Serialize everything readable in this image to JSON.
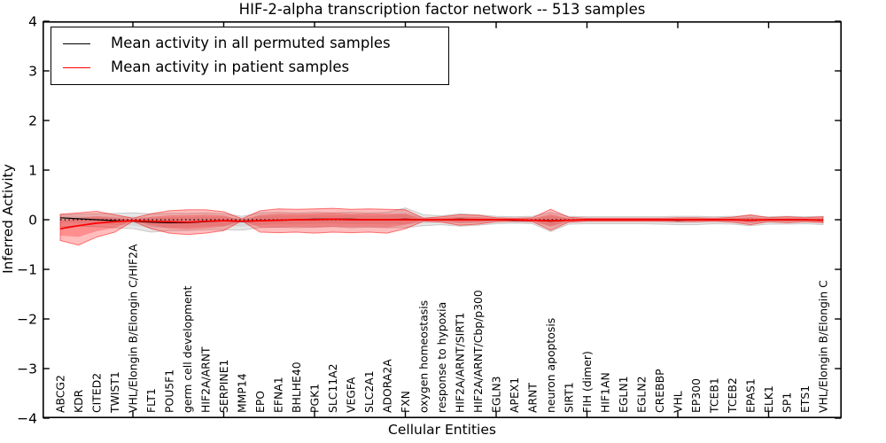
{
  "chart_data": {
    "type": "line",
    "title": "HIF-2-alpha transcription factor network -- 513 samples",
    "xlabel": "Cellular Entities",
    "ylabel": "Inferred Activity",
    "ylim": [
      -4,
      4
    ],
    "grid": false,
    "legend_position": "upper left",
    "ytick_values": [
      4,
      3,
      2,
      1,
      0,
      -1,
      -2,
      -3,
      -4
    ],
    "ytick_labels": [
      "4",
      "3",
      "2",
      "1",
      "0",
      "−1",
      "−2",
      "−3",
      "−4"
    ],
    "xtick_data_positions": [
      5,
      10,
      15,
      20,
      25,
      30,
      35,
      40
    ],
    "categories": [
      "ABCG2",
      "KDR",
      "CITED2",
      "TWIST1",
      "VHL/Elongin B/Elongin C/HIF2A",
      "FLT1",
      "POU5F1",
      "germ cell development",
      "HIF2A/ARNT",
      "SERPINE1",
      "MMP14",
      "EPO",
      "EFNA1",
      "BHLHE40",
      "PGK1",
      "SLC11A2",
      "VEGFA",
      "SLC2A1",
      "ADORA2A",
      "FXN",
      "oxygen homeostasis",
      "response to hypoxia",
      "HIF2A/ARNT/SIRT1",
      "HIF2A/ARNT/Cbp/p300",
      "EGLN3",
      "APEX1",
      "ARNT",
      "neuron apoptosis",
      "SIRT1",
      "FIH (dimer)",
      "HIF1AN",
      "EGLN1",
      "EGLN2",
      "CREBBP",
      "VHL",
      "EP300",
      "TCEB1",
      "TCEB2",
      "EPAS1",
      "ELK1",
      "SP1",
      "ETS1",
      "VHL/Elongin B/Elongin C"
    ],
    "reference_line": {
      "y": 0,
      "style": "dotted",
      "color": "#000000"
    },
    "series": [
      {
        "name": "Mean activity in all permuted samples",
        "color": "#000000",
        "style": "solid",
        "values": [
          0.04,
          0.02,
          0.0,
          -0.02,
          -0.03,
          -0.05,
          -0.06,
          -0.06,
          -0.04,
          -0.02,
          -0.04,
          -0.02,
          -0.01,
          0.0,
          0.01,
          0.01,
          0.01,
          0.0,
          0.0,
          0.01,
          0.0,
          0.0,
          0.01,
          0.0,
          0.0,
          -0.01,
          -0.01,
          -0.03,
          -0.01,
          0.0,
          0.0,
          0.0,
          0.0,
          0.0,
          -0.01,
          0.0,
          0.0,
          0.0,
          -0.01,
          0.0,
          0.0,
          0.0,
          -0.01
        ]
      },
      {
        "name": "Mean activity in patient samples",
        "color": "#ff0000",
        "style": "solid",
        "values": [
          -0.18,
          -0.12,
          -0.07,
          -0.04,
          -0.02,
          -0.03,
          -0.04,
          -0.05,
          -0.03,
          -0.02,
          -0.03,
          -0.02,
          -0.01,
          0.0,
          0.0,
          0.01,
          0.0,
          0.0,
          0.0,
          0.0,
          0.0,
          0.0,
          0.0,
          0.0,
          0.0,
          0.0,
          -0.01,
          -0.02,
          -0.01,
          0.0,
          0.0,
          0.0,
          0.0,
          0.0,
          0.0,
          0.0,
          0.0,
          0.0,
          -0.01,
          0.0,
          0.0,
          0.0,
          -0.01
        ]
      }
    ],
    "bands": [
      {
        "name": "permuted samples activity spread",
        "color": "#808080",
        "center_series": 0,
        "upper": [
          0.1,
          0.11,
          0.12,
          0.13,
          0.14,
          0.12,
          0.13,
          0.13,
          0.14,
          0.12,
          0.07,
          0.14,
          0.15,
          0.14,
          0.15,
          0.14,
          0.15,
          0.14,
          0.15,
          0.24,
          0.1,
          0.08,
          0.12,
          0.1,
          0.07,
          0.06,
          0.07,
          0.15,
          0.07,
          0.06,
          0.06,
          0.06,
          0.06,
          0.06,
          0.07,
          0.07,
          0.06,
          0.07,
          0.08,
          0.06,
          0.07,
          0.06,
          0.07
        ],
        "lower": [
          -0.14,
          -0.13,
          -0.14,
          -0.16,
          -0.18,
          -0.25,
          -0.22,
          -0.22,
          -0.2,
          -0.2,
          -0.21,
          -0.16,
          -0.15,
          -0.16,
          -0.15,
          -0.14,
          -0.16,
          -0.15,
          -0.16,
          -0.16,
          -0.12,
          -0.1,
          -0.13,
          -0.11,
          -0.08,
          -0.07,
          -0.08,
          -0.24,
          -0.09,
          -0.08,
          -0.08,
          -0.08,
          -0.08,
          -0.09,
          -0.1,
          -0.1,
          -0.08,
          -0.09,
          -0.12,
          -0.09,
          -0.09,
          -0.08,
          -0.1
        ]
      },
      {
        "name": "patient samples activity spread",
        "color": "#ff0000",
        "center_series": 1,
        "upper": [
          0.11,
          0.14,
          0.17,
          0.1,
          0.03,
          0.12,
          0.18,
          0.2,
          0.2,
          0.16,
          0.02,
          0.18,
          0.22,
          0.21,
          0.22,
          0.23,
          0.21,
          0.22,
          0.21,
          0.2,
          0.03,
          0.06,
          0.1,
          0.09,
          0.04,
          0.03,
          0.04,
          0.21,
          0.05,
          0.03,
          0.03,
          0.03,
          0.03,
          0.03,
          0.04,
          0.04,
          0.03,
          0.05,
          0.1,
          0.04,
          0.06,
          0.04,
          0.06
        ],
        "lower": [
          -0.42,
          -0.51,
          -0.35,
          -0.25,
          -0.03,
          -0.18,
          -0.27,
          -0.3,
          -0.27,
          -0.22,
          -0.02,
          -0.25,
          -0.26,
          -0.25,
          -0.27,
          -0.25,
          -0.26,
          -0.25,
          -0.27,
          -0.18,
          -0.03,
          -0.05,
          -0.11,
          -0.09,
          -0.04,
          -0.03,
          -0.04,
          -0.21,
          -0.05,
          -0.03,
          -0.03,
          -0.03,
          -0.03,
          -0.03,
          -0.04,
          -0.04,
          -0.03,
          -0.05,
          -0.1,
          -0.04,
          -0.06,
          -0.04,
          -0.06
        ]
      }
    ]
  }
}
